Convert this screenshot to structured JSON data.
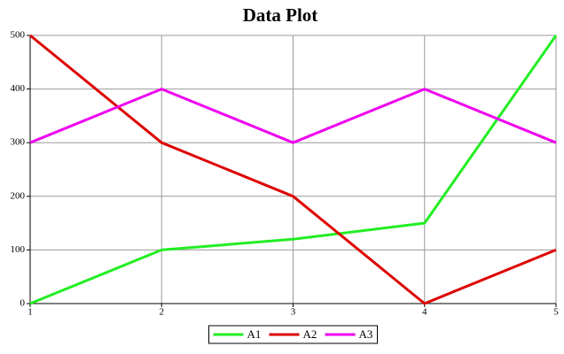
{
  "chart_data": {
    "type": "line",
    "title": "Data Plot",
    "x": [
      1,
      2,
      3,
      4,
      5
    ],
    "series": [
      {
        "name": "A1",
        "color": "#22ee22",
        "values": [
          0,
          100,
          120,
          150,
          500
        ]
      },
      {
        "name": "A2",
        "color": "#dd0000",
        "values": [
          500,
          300,
          200,
          0,
          100
        ]
      },
      {
        "name": "A3",
        "color": "#ee00ee",
        "values": [
          300,
          400,
          300,
          400,
          300
        ]
      }
    ],
    "xlim": [
      1,
      5
    ],
    "xticks": [
      1,
      2,
      3,
      4,
      5
    ],
    "ylim": [
      0,
      500
    ],
    "yticks": [
      0,
      100,
      200,
      300,
      400,
      500
    ],
    "grid": true,
    "legend": "bottom"
  }
}
